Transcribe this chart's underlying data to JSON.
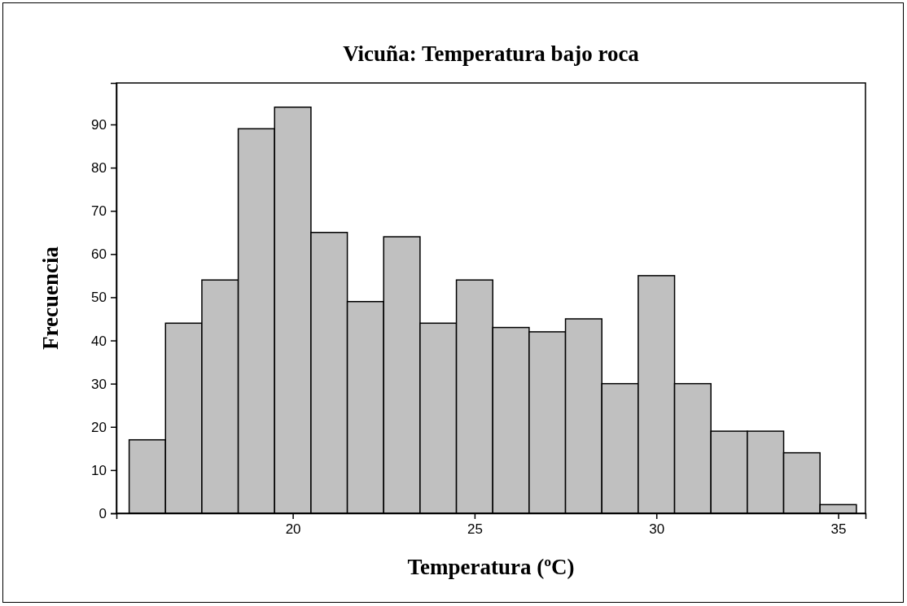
{
  "chart_data": {
    "type": "histogram",
    "title": "Vicuña: Temperatura bajo roca",
    "xlabel": "Temperatura (ºC)",
    "ylabel": "Frecuencia",
    "bins": [
      15.5,
      16.5,
      17.5,
      18.5,
      19.5,
      20.5,
      21.5,
      22.5,
      23.5,
      24.5,
      25.5,
      26.5,
      27.5,
      28.5,
      29.5,
      30.5,
      31.5,
      32.5,
      33.5,
      34.5,
      35.5
    ],
    "values": [
      17,
      44,
      54,
      89,
      94,
      65,
      49,
      64,
      44,
      54,
      43,
      42,
      45,
      30,
      55,
      30,
      19,
      19,
      14,
      2
    ],
    "color": "#c0c0c0",
    "xlim": [
      15.15,
      35.75
    ],
    "xticks": [
      20,
      25,
      30,
      35
    ],
    "ylim": [
      0,
      99.6
    ],
    "yticks": [
      0,
      10,
      20,
      30,
      40,
      50,
      60,
      70,
      80,
      90
    ],
    "grid": false
  }
}
